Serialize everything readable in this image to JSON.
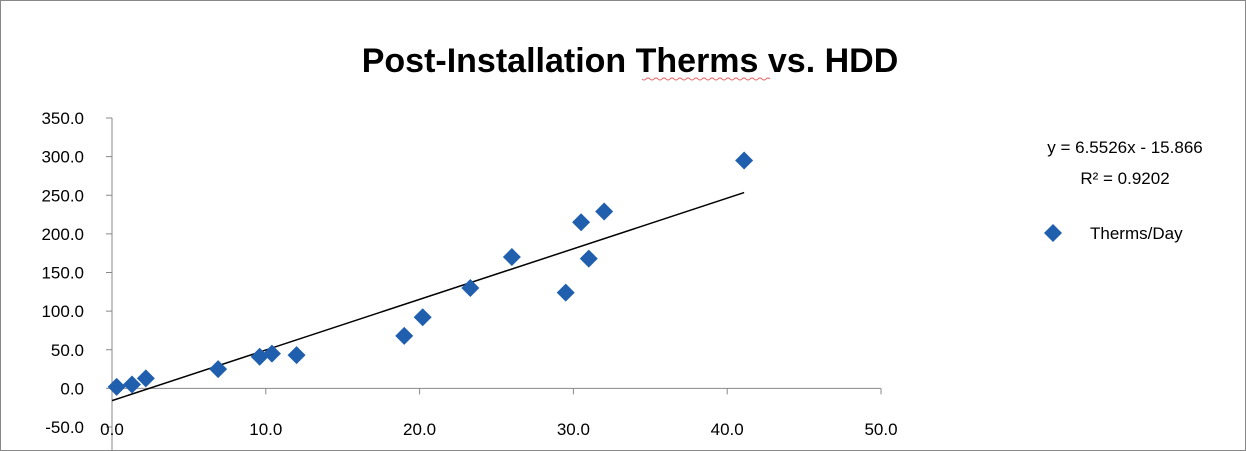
{
  "chart_data": {
    "type": "scatter",
    "title": "Post-Installation Therms vs. HDD",
    "xlabel": "",
    "ylabel": "",
    "xlim": [
      0,
      50
    ],
    "ylim": [
      -50,
      350
    ],
    "x_ticks": [
      "0.0",
      "10.0",
      "20.0",
      "30.0",
      "40.0",
      "50.0"
    ],
    "y_ticks": [
      "-50.0",
      "0.0",
      "50.0",
      "100.0",
      "150.0",
      "200.0",
      "250.0",
      "300.0",
      "350.0"
    ],
    "grid": false,
    "legend_position": "right",
    "series": [
      {
        "name": "Therms/Day",
        "color": "#1f5fae",
        "marker": "diamond",
        "points": [
          {
            "x": 0.3,
            "y": 2
          },
          {
            "x": 1.3,
            "y": 5
          },
          {
            "x": 2.2,
            "y": 13
          },
          {
            "x": 6.9,
            "y": 25
          },
          {
            "x": 9.6,
            "y": 41
          },
          {
            "x": 10.4,
            "y": 45
          },
          {
            "x": 12.0,
            "y": 43
          },
          {
            "x": 19.0,
            "y": 68
          },
          {
            "x": 20.2,
            "y": 92
          },
          {
            "x": 23.3,
            "y": 130
          },
          {
            "x": 26.0,
            "y": 170
          },
          {
            "x": 29.5,
            "y": 124
          },
          {
            "x": 30.5,
            "y": 215
          },
          {
            "x": 31.0,
            "y": 168
          },
          {
            "x": 32.0,
            "y": 229
          },
          {
            "x": 41.1,
            "y": 295
          }
        ]
      }
    ],
    "trendline": {
      "type": "linear",
      "slope": 6.5526,
      "intercept": -15.866,
      "x_range": [
        0,
        41.1
      ],
      "color": "#000000",
      "equation": "y = 6.5526x - 15.866",
      "r_squared": "R² = 0.9202"
    }
  }
}
